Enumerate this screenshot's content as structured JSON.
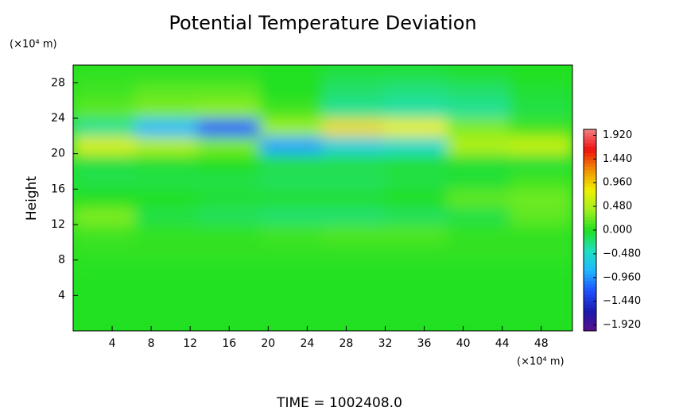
{
  "chart_data": {
    "type": "heatmap",
    "title": "Potential Temperature Deviation",
    "ylabel": "Height",
    "yunit": "(×10⁴ m)",
    "xunit": "(×10⁴ m)",
    "footer": "TIME = 1002408.0",
    "xlim": [
      0,
      51.2
    ],
    "ylim": [
      0,
      30
    ],
    "xticks": [
      4,
      8,
      12,
      16,
      20,
      24,
      28,
      32,
      36,
      40,
      44,
      48
    ],
    "yticks": [
      4,
      8,
      12,
      16,
      20,
      24,
      28
    ],
    "x": [
      3.2,
      9.6,
      16,
      22.4,
      28.8,
      35.2,
      41.6,
      48
    ],
    "y": [
      1,
      3,
      5,
      7,
      9,
      11,
      13,
      15,
      17,
      19,
      21,
      23,
      25,
      27,
      29
    ],
    "z": [
      [
        0,
        0,
        0,
        0,
        0,
        0,
        0,
        0
      ],
      [
        0,
        0,
        0,
        0,
        0,
        0,
        0,
        0
      ],
      [
        0,
        0,
        0,
        0,
        0,
        0,
        0,
        0
      ],
      [
        0.02,
        0.02,
        0.02,
        0.02,
        0.02,
        0.02,
        0.02,
        0.02
      ],
      [
        0.05,
        0.05,
        0.05,
        0.05,
        0.05,
        0.05,
        0.05,
        0.05
      ],
      [
        0.1,
        0.05,
        0.05,
        0.1,
        0.15,
        0.15,
        0.05,
        0.05
      ],
      [
        0.3,
        -0.1,
        -0.15,
        -0.2,
        -0.2,
        -0.15,
        -0.1,
        0.2
      ],
      [
        0,
        0,
        -0.05,
        -0.05,
        -0.05,
        0,
        0.2,
        0.25
      ],
      [
        -0.1,
        -0.1,
        -0.1,
        -0.15,
        -0.15,
        -0.1,
        -0.05,
        0.1
      ],
      [
        -0.1,
        -0.05,
        0,
        -0.1,
        -0.1,
        -0.05,
        -0.05,
        -0.05
      ],
      [
        0.7,
        0.5,
        0.3,
        -0.9,
        -0.6,
        -0.5,
        0.5,
        0.6
      ],
      [
        -0.3,
        -0.8,
        -1.2,
        0.4,
        0.9,
        0.8,
        0.3,
        0.1
      ],
      [
        0.2,
        0.3,
        0.35,
        0.1,
        -0.3,
        -0.35,
        -0.3,
        -0.1
      ],
      [
        0.1,
        0.2,
        0.2,
        0,
        -0.2,
        -0.25,
        -0.2,
        -0.05
      ],
      [
        0.05,
        0.05,
        0.05,
        0,
        -0.1,
        -0.1,
        -0.05,
        0
      ]
    ],
    "colormap": [
      "#5a0f8a",
      "#1a1ab0",
      "#2050ff",
      "#20b8ff",
      "#20e0c0",
      "#20e020",
      "#a0f020",
      "#f0f000",
      "#f09000",
      "#f01010",
      "#f08080"
    ],
    "clim": [
      -2.04,
      2.04
    ],
    "cticks": [
      {
        "value": 1.92,
        "label": "1.920"
      },
      {
        "value": 1.44,
        "label": "1.440"
      },
      {
        "value": 0.96,
        "label": "0.960"
      },
      {
        "value": 0.48,
        "label": "0.480"
      },
      {
        "value": 0,
        "label": "0.000"
      },
      {
        "value": -0.48,
        "label": "−0.480"
      },
      {
        "value": -0.96,
        "label": "−0.960"
      },
      {
        "value": -1.44,
        "label": "−1.440"
      },
      {
        "value": -1.92,
        "label": "−1.920"
      }
    ]
  }
}
